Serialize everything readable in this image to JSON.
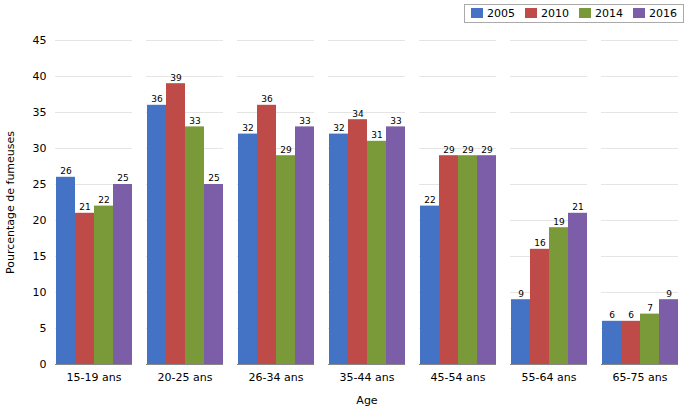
{
  "chart_data": {
    "type": "bar",
    "categories": [
      "15-19 ans",
      "20-25 ans",
      "26-34 ans",
      "35-44 ans",
      "45-54 ans",
      "55-64 ans",
      "65-75 ans"
    ],
    "series": [
      {
        "name": "2005",
        "color": "#4472C4",
        "values": [
          26,
          36,
          32,
          32,
          22,
          9,
          6
        ]
      },
      {
        "name": "2010",
        "color": "#BE4B48",
        "values": [
          21,
          39,
          36,
          34,
          29,
          16,
          6
        ]
      },
      {
        "name": "2014",
        "color": "#7A9A3A",
        "values": [
          22,
          33,
          29,
          31,
          29,
          19,
          7
        ]
      },
      {
        "name": "2016",
        "color": "#7B5EA7",
        "values": [
          25,
          25,
          33,
          33,
          29,
          21,
          9
        ]
      }
    ],
    "xlabel": "Age",
    "ylabel": "Pourcentage de fumeuses",
    "ylim": [
      0,
      45
    ],
    "yticks": [
      0,
      5,
      10,
      15,
      20,
      25,
      30,
      35,
      40,
      45
    ],
    "grid": true,
    "legend": "upper right",
    "data_labels": true
  }
}
